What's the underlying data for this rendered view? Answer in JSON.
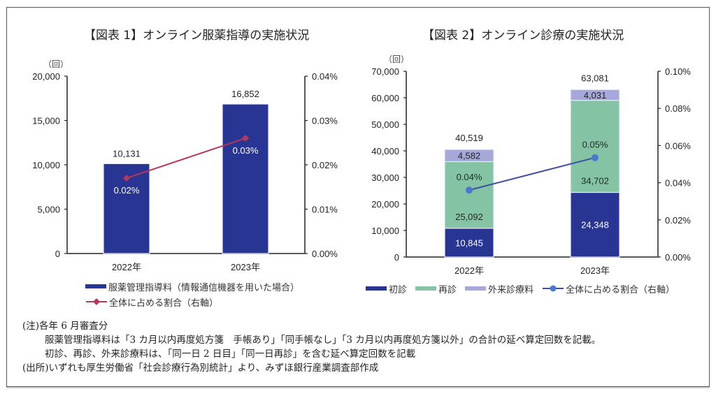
{
  "chart_data": [
    {
      "type": "bar",
      "title": "【図表 1】オンライン服薬指導の実施状況",
      "ylabel": "（回）",
      "categories": [
        "2022年",
        "2023年"
      ],
      "ylim": [
        0,
        20000
      ],
      "y_ticks": [
        "0",
        "5,000",
        "10,000",
        "15,000",
        "20,000"
      ],
      "y2lim": [
        0,
        0.04
      ],
      "y2_ticks": [
        "0.00%",
        "0.01%",
        "0.02%",
        "0.03%",
        "0.04%"
      ],
      "series": [
        {
          "name": "服薬管理指導料（情報通信機器を用いた場合）",
          "kind": "bar",
          "color": "#283593",
          "values": [
            10131,
            16852
          ],
          "labels": [
            "10,131",
            "16,852"
          ]
        },
        {
          "name": "全体に占める割合（右軸）",
          "kind": "line",
          "axis": "right",
          "marker": "diamond",
          "color": "#b5375a",
          "values": [
            0.017,
            0.026
          ],
          "labels": [
            "0.02%",
            "0.03%"
          ]
        }
      ],
      "legend_position": "bottom"
    },
    {
      "type": "bar",
      "stacked": true,
      "title": "【図表 2】オンライン診療の実施状況",
      "ylabel": "（回）",
      "categories": [
        "2022年",
        "2023年"
      ],
      "ylim": [
        0,
        70000
      ],
      "y_ticks": [
        "0",
        "10,000",
        "20,000",
        "30,000",
        "40,000",
        "50,000",
        "60,000",
        "70,000"
      ],
      "y2lim": [
        0,
        0.1
      ],
      "y2_ticks": [
        "0.00%",
        "0.02%",
        "0.04%",
        "0.06%",
        "0.08%",
        "0.10%"
      ],
      "totals": [
        40519,
        63081
      ],
      "total_labels": [
        "40,519",
        "63,081"
      ],
      "series": [
        {
          "name": "初診",
          "kind": "bar",
          "color": "#283593",
          "label_color": "#ffffff",
          "values": [
            10845,
            24348
          ],
          "labels": [
            "10,845",
            "24,348"
          ]
        },
        {
          "name": "再診",
          "kind": "bar",
          "color": "#84c4a4",
          "label_color": "#1d2a22",
          "values": [
            25092,
            34702
          ],
          "labels": [
            "25,092",
            "34,702"
          ]
        },
        {
          "name": "外来診療料",
          "kind": "bar",
          "color": "#a5a8d8",
          "label_color": "#222222",
          "values": [
            4582,
            4031
          ],
          "labels": [
            "4,582",
            "4,031"
          ]
        },
        {
          "name": "全体に占める割合（右軸）",
          "kind": "line",
          "axis": "right",
          "marker": "circle",
          "color": "#3f4fa0",
          "marker_color": "#4a78d0",
          "values": [
            0.036,
            0.0535
          ],
          "labels": [
            "0.04%",
            "0.05%"
          ]
        }
      ],
      "legend_position": "bottom"
    }
  ],
  "notes": {
    "line1": "(注)各年 6 月審査分",
    "line2": "服薬管理指導料は「3 カ月以内再度処方箋　手帳あり」「同手帳なし」「3 カ月以内再度処方箋以外」の合計の延べ算定回数を記載。",
    "line3": "初診、再診、外来診療料は、「同一日 2 日目」「同一日再診」を含む延べ算定回数を記載",
    "line4": "(出所)いずれも厚生労働省「社会診療行為別統計」より、みずほ銀行産業調査部作成"
  }
}
